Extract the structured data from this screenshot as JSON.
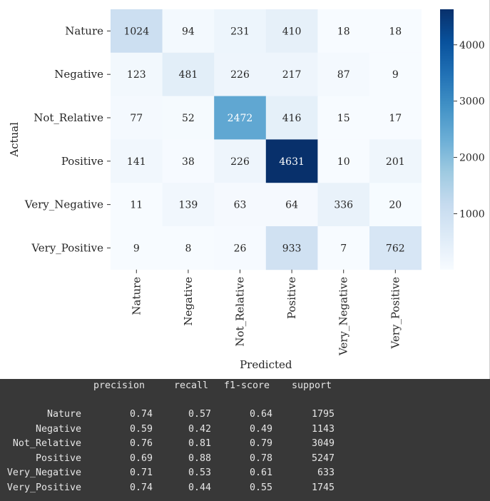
{
  "chart_data": {
    "type": "heatmap",
    "xlabel": "Predicted",
    "ylabel": "Actual",
    "x_categories": [
      "Nature",
      "Negative",
      "Not_Relative",
      "Positive",
      "Very_Negative",
      "Very_Positive"
    ],
    "y_categories": [
      "Nature",
      "Negative",
      "Not_Relative",
      "Positive",
      "Very_Negative",
      "Very_Positive"
    ],
    "values": [
      [
        1024,
        94,
        231,
        410,
        18,
        18
      ],
      [
        123,
        481,
        226,
        217,
        87,
        9
      ],
      [
        77,
        52,
        2472,
        416,
        15,
        17
      ],
      [
        141,
        38,
        226,
        4631,
        10,
        201
      ],
      [
        11,
        139,
        63,
        64,
        336,
        20
      ],
      [
        9,
        8,
        26,
        933,
        7,
        762
      ]
    ],
    "colormap": "Blues",
    "colorbar": {
      "ticks": [
        1000,
        2000,
        3000,
        4000
      ],
      "min": 7,
      "max": 4631
    }
  },
  "report": {
    "headers": [
      "precision",
      "recall",
      "f1-score",
      "support"
    ],
    "rows": [
      {
        "label": "Nature",
        "precision": "0.74",
        "recall": "0.57",
        "f1": "0.64",
        "support": "1795"
      },
      {
        "label": "Negative",
        "precision": "0.59",
        "recall": "0.42",
        "f1": "0.49",
        "support": "1143"
      },
      {
        "label": "Not_Relative",
        "precision": "0.76",
        "recall": "0.81",
        "f1": "0.79",
        "support": "3049"
      },
      {
        "label": "Positive",
        "precision": "0.69",
        "recall": "0.88",
        "f1": "0.78",
        "support": "5247"
      },
      {
        "label": "Very_Negative",
        "precision": "0.71",
        "recall": "0.53",
        "f1": "0.61",
        "support": "633"
      },
      {
        "label": "Very_Positive",
        "precision": "0.74",
        "recall": "0.44",
        "f1": "0.55",
        "support": "1745"
      }
    ]
  }
}
